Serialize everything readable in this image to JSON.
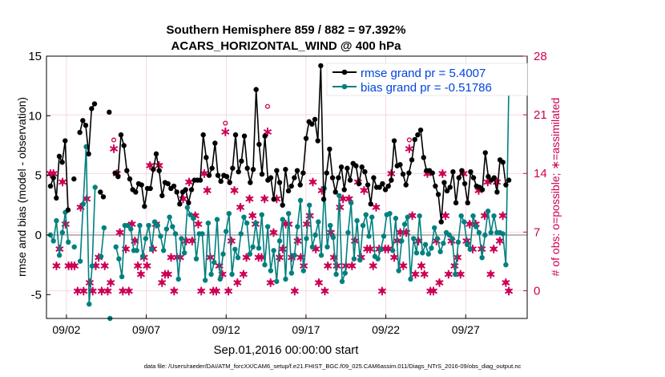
{
  "chart_data": {
    "type": "line",
    "title": "Southern Hemisphere 859 / 882 = 97.392%",
    "subtitle": "ACARS_HORIZONTAL_WIND @ 400 hPa",
    "xlabel": "Sep.01,2016 00:00:00 start",
    "ylabel": "rmse and bias (model - observation)",
    "ylabel_right": "# of obs: o=possible; ∗=assimilated",
    "footer": "data file: /Users/raeder/DAI/ATM_forcXX/CAM6_setup/f.e21.FHIST_BGC.f09_025.CAM6assim.011/Diags_NTrS_2016-09/obs_diag_output.nc",
    "xlim": [
      0.75,
      30.85
    ],
    "ylim": [
      -7,
      15
    ],
    "ylim_right": [
      -3.31,
      28
    ],
    "x_ticks": [
      2,
      7,
      12,
      17,
      22,
      27
    ],
    "x_ticklabels": [
      "09/02",
      "09/07",
      "09/12",
      "09/17",
      "09/22",
      "09/27"
    ],
    "y_ticks": [
      -5,
      0,
      5,
      10,
      15
    ],
    "y_right_ticks": [
      0,
      7,
      14,
      21,
      28
    ],
    "colors": {
      "rmse": "#000000",
      "bias": "#008080",
      "obs": "#cc0055",
      "legend_text": "#0044dd",
      "zero_line": "#bbbbbb",
      "grid": "#f0c8d8"
    },
    "series": [
      {
        "name": "rmse grand pr = 5.4007",
        "values": [
          4.1,
          4.8,
          3.1,
          6.6,
          6.1,
          7.9,
          2.1,
          null,
          4.7,
          null,
          8.6,
          9.6,
          9.2,
          6.8,
          10.6,
          11.0,
          null,
          3.6,
          3.2,
          null,
          10.3,
          null,
          5.2,
          4.9,
          8.4,
          7.5,
          5.4,
          4.7,
          3.8,
          3.6,
          4.3,
          4.2,
          2.4,
          3.9,
          3.9,
          5.5,
          6.8,
          5.4,
          3.3,
          4.4,
          4.3,
          3.9,
          4.1,
          3.6,
          2.6,
          3.6,
          3.8,
          2.7,
          3.8,
          4.6,
          4.6,
          4.6,
          8.4,
          6.5,
          5.0,
          5.6,
          7.7,
          5.0,
          4.5,
          5.0,
          4.9,
          4.4,
          5.6,
          8.4,
          5.3,
          6.2,
          8.3,
          5.6,
          4.4,
          5.5,
          12.2,
          7.6,
          5.1,
          8.3,
          4.6,
          4.8,
          3.0,
          5.4,
          4.4,
          2.5,
          5.5,
          3.7,
          4.1,
          4.8,
          5.4,
          4.2,
          5.2,
          8.1,
          9.5,
          9.3,
          9.7,
          7.9,
          14.2,
          3.0,
          5.2,
          7.2,
          4.8,
          3.6,
          4.8,
          5.7,
          3.8,
          5.6,
          4.6,
          6.0,
          5.8,
          4.3,
          5.7,
          5.3,
          4.2,
          2.6,
          4.8,
          4.0,
          4.0,
          4.3,
          3.8,
          4.1,
          4.6,
          7.9,
          5.8,
          5.9,
          5.1,
          4.2,
          5.2,
          6.3,
          8.0,
          8.4,
          8.8,
          6.5,
          5.4,
          5.4,
          5.2,
          4.1,
          3.4,
          1.1,
          4.4,
          3.7,
          4.0,
          5.3,
          2.7,
          4.8,
          5.4,
          4.3,
          2.7,
          5.3,
          4.8,
          4.1,
          4.0,
          3.8,
          6.9,
          4.9,
          4.6,
          4.8,
          3.6,
          6.3,
          6.1,
          4.2,
          4.6
        ],
        "y_axis": "left",
        "marker": "o"
      },
      {
        "name": "bias grand pr = -0.51786",
        "values": [
          0.0,
          -0.5,
          1.2,
          -1.7,
          0.2,
          1.9,
          -0.6,
          null,
          -1.0,
          null,
          -2.2,
          2.6,
          7.4,
          -5.8,
          -2.6,
          4.0,
          null,
          -1.8,
          0.6,
          null,
          -7.0,
          null,
          -1.0,
          -2.0,
          -3.5,
          0.8,
          0.8,
          0.5,
          -1.3,
          -1.3,
          0.8,
          -1.8,
          -0.3,
          0.8,
          -1.2,
          1.1,
          0.8,
          -0.1,
          -1.3,
          0.5,
          1.5,
          0.7,
          0.1,
          -3.7,
          -0.3,
          -1.5,
          2.3,
          1.7,
          1.4,
          -2.0,
          0.1,
          0.1,
          -3.8,
          1.0,
          -3.3,
          -2.3,
          1.3,
          -3.7,
          -1.6,
          0.3,
          1.8,
          -3.3,
          -1.2,
          -1.9,
          0.1,
          1.5,
          1.0,
          -1.6,
          -1.0,
          1.0,
          -1.1,
          1.7,
          -2.5,
          0.7,
          -3.0,
          -1.3,
          -3.9,
          -0.5,
          1.3,
          -3.7,
          1.8,
          -3.2,
          -1.7,
          0.7,
          2.9,
          -3.0,
          -0.3,
          2.5,
          -1.0,
          0.0,
          1.1,
          -1.7,
          3.9,
          -1.0,
          0.8,
          -0.2,
          -3.3,
          3.3,
          -3.9,
          -3.2,
          0.2,
          2.7,
          -2.0,
          1.2,
          -2.1,
          0.8,
          1.7,
          -0.1,
          1.5,
          -1.8,
          -2.0,
          -1.2,
          -0.1,
          1.7,
          1.8,
          -1.3,
          1.4,
          -3.0,
          -0.5,
          0.9,
          1.5,
          -3.7,
          -0.3,
          -1.5,
          1.6,
          -1.5,
          -0.8,
          -1.6,
          -1.1,
          0.6,
          -0.3,
          -1.4,
          -0.7,
          0.2,
          0.0,
          -0.3,
          -3.3,
          -0.6,
          1.6,
          1.1,
          -0.8,
          -1.2,
          1.6,
          0.7,
          0.2,
          -1.9,
          0.0,
          2.0,
          0.2,
          1.6,
          0.2,
          0.2,
          0.1,
          -2.5,
          12.5
        ],
        "y_axis": "left",
        "marker": "o"
      },
      {
        "name": "possible",
        "values": [
          14,
          14,
          3,
          5,
          13,
          8,
          3,
          3,
          3,
          0,
          10,
          0,
          11,
          1,
          0,
          3,
          4,
          0,
          3,
          0,
          1,
          18,
          14,
          7,
          0,
          5,
          0,
          8,
          6,
          3,
          2,
          4,
          3,
          15,
          5,
          8,
          15,
          1,
          2,
          2,
          4,
          0,
          4,
          4,
          11,
          6,
          13,
          6,
          9,
          8,
          0,
          14,
          12,
          4,
          0,
          0,
          3,
          2,
          20,
          0,
          6,
          12,
          1,
          10,
          2,
          4,
          11,
          9,
          8,
          4,
          4,
          11,
          22,
          1,
          7,
          11,
          4,
          5,
          8,
          8,
          4,
          0,
          6,
          4,
          3,
          8,
          9,
          13,
          5,
          1,
          12,
          0,
          3,
          7,
          4,
          3,
          10,
          11,
          3,
          11,
          3,
          6,
          13,
          4,
          12,
          5,
          5,
          3,
          10,
          5,
          0,
          5,
          5,
          14,
          4,
          6,
          7,
          3,
          7,
          18,
          9,
          2,
          6,
          3,
          2,
          14,
          0,
          0,
          6,
          1,
          14,
          9,
          2,
          6,
          3,
          4,
          2,
          14,
          6,
          8,
          5,
          8,
          12,
          5,
          9,
          13,
          2,
          5,
          13,
          6,
          9,
          1,
          0
        ],
        "y_axis": "right",
        "marker": "o"
      },
      {
        "name": "assimilated",
        "values": [
          14,
          14,
          3,
          5,
          13,
          8,
          3,
          3,
          3,
          0,
          10,
          0,
          11,
          1,
          0,
          3,
          4,
          0,
          3,
          0,
          1,
          17,
          14,
          7,
          0,
          5,
          0,
          8,
          6,
          3,
          2,
          4,
          3,
          15,
          5,
          8,
          15,
          1,
          2,
          2,
          4,
          0,
          4,
          4,
          11,
          6,
          13,
          6,
          9,
          8,
          0,
          14,
          12,
          4,
          0,
          0,
          3,
          2,
          19,
          0,
          6,
          12,
          1,
          10,
          2,
          4,
          11,
          9,
          8,
          4,
          4,
          11,
          19,
          1,
          7,
          11,
          4,
          5,
          8,
          8,
          4,
          0,
          6,
          4,
          3,
          8,
          9,
          13,
          5,
          1,
          12,
          0,
          3,
          7,
          4,
          3,
          10,
          11,
          3,
          11,
          3,
          6,
          13,
          4,
          12,
          5,
          5,
          3,
          10,
          5,
          0,
          5,
          5,
          14,
          4,
          6,
          7,
          3,
          7,
          17,
          9,
          2,
          6,
          3,
          2,
          14,
          0,
          0,
          6,
          1,
          14,
          9,
          2,
          6,
          3,
          4,
          2,
          14,
          6,
          8,
          5,
          8,
          12,
          5,
          9,
          13,
          2,
          5,
          13,
          6,
          9,
          1,
          0
        ],
        "y_axis": "right",
        "marker": "*"
      }
    ]
  }
}
